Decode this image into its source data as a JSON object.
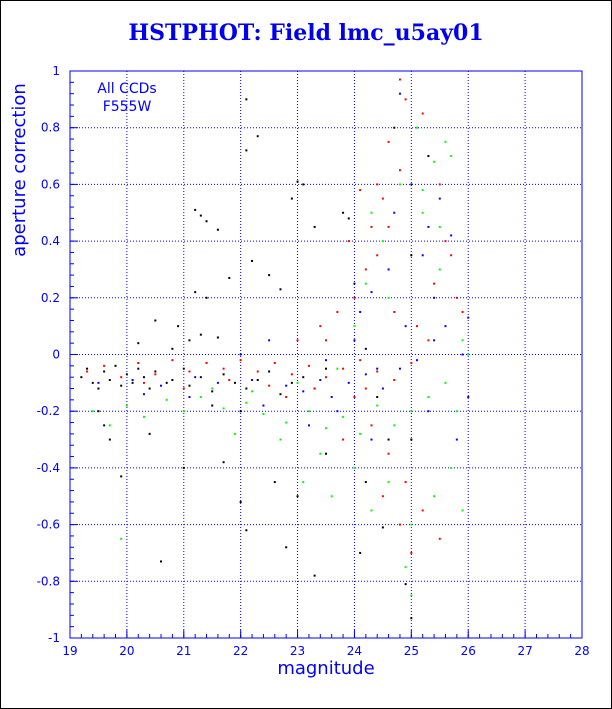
{
  "title": "HSTPHOT: Field lmc_u5ay01",
  "annotation": [
    "All CCDs",
    "F555W"
  ],
  "colors": {
    "axis": "#0000ff",
    "title": "#0000ee",
    "grid": "#0000ff"
  },
  "chart_data": {
    "type": "scatter",
    "title": "HSTPHOT: Field lmc_u5ay01",
    "xlabel": "magnitude",
    "ylabel": "aperture correction",
    "xlim": [
      19,
      28
    ],
    "ylim": [
      -1,
      1
    ],
    "xticks": [
      "19",
      "20",
      "21",
      "22",
      "23",
      "24",
      "25",
      "26",
      "27",
      "28"
    ],
    "yticks": [
      "-1",
      "-0.8",
      "-0.6",
      "-0.4",
      "-0.2",
      "0",
      "0.2",
      "0.4",
      "0.6",
      "0.8",
      "1"
    ],
    "grid": true,
    "series": [
      {
        "color": "#000000",
        "values": [
          [
            19.2,
            -0.08
          ],
          [
            19.3,
            -0.05
          ],
          [
            19.4,
            -0.1
          ],
          [
            19.5,
            -0.12
          ],
          [
            19.6,
            -0.06
          ],
          [
            19.7,
            -0.09
          ],
          [
            19.8,
            -0.04
          ],
          [
            19.9,
            -0.11
          ],
          [
            20.0,
            -0.07
          ],
          [
            20.1,
            -0.1
          ],
          [
            20.2,
            -0.05
          ],
          [
            20.3,
            -0.08
          ],
          [
            20.4,
            -0.12
          ],
          [
            20.5,
            -0.06
          ],
          [
            20.7,
            -0.1
          ],
          [
            20.8,
            -0.09
          ],
          [
            21.0,
            -0.05
          ],
          [
            21.1,
            -0.11
          ],
          [
            21.3,
            -0.08
          ],
          [
            21.5,
            -0.13
          ],
          [
            21.7,
            -0.07
          ],
          [
            21.9,
            -0.1
          ],
          [
            22.1,
            -0.12
          ],
          [
            22.3,
            -0.09
          ],
          [
            22.5,
            -0.06
          ],
          [
            22.7,
            -0.14
          ],
          [
            22.9,
            -0.1
          ],
          [
            23.1,
            -0.08
          ],
          [
            23.3,
            -0.12
          ],
          [
            23.5,
            -0.05
          ],
          [
            20.5,
            0.12
          ],
          [
            20.9,
            0.1
          ],
          [
            21.1,
            0.05
          ],
          [
            20.2,
            0.04
          ],
          [
            21.3,
            0.07
          ],
          [
            20.8,
            0.02
          ],
          [
            21.6,
            0.06
          ],
          [
            21.2,
            0.51
          ],
          [
            21.3,
            0.49
          ],
          [
            21.4,
            0.47
          ],
          [
            21.6,
            0.44
          ],
          [
            22.2,
            0.33
          ],
          [
            22.5,
            0.28
          ],
          [
            22.7,
            0.23
          ],
          [
            21.2,
            0.22
          ],
          [
            21.4,
            0.2
          ],
          [
            21.8,
            0.27
          ],
          [
            23.0,
            0.61
          ],
          [
            23.1,
            0.6
          ],
          [
            22.1,
            0.9
          ],
          [
            22.1,
            0.72
          ],
          [
            22.3,
            0.77
          ],
          [
            22.9,
            0.55
          ],
          [
            23.3,
            0.45
          ],
          [
            22.6,
            -0.45
          ],
          [
            22.0,
            -0.52
          ],
          [
            23.0,
            -0.5
          ],
          [
            21.7,
            -0.38
          ],
          [
            20.4,
            -0.28
          ],
          [
            19.7,
            -0.3
          ],
          [
            19.9,
            -0.43
          ],
          [
            20.6,
            -0.73
          ],
          [
            19.5,
            -0.2
          ],
          [
            19.6,
            -0.25
          ],
          [
            21.0,
            -0.4
          ],
          [
            22.1,
            -0.62
          ],
          [
            22.8,
            -0.68
          ],
          [
            23.3,
            -0.78
          ],
          [
            24.1,
            -0.7
          ],
          [
            24.9,
            -0.81
          ],
          [
            25.0,
            -0.93
          ],
          [
            24.5,
            -0.61
          ],
          [
            23.5,
            -0.35
          ],
          [
            23.8,
            0.5
          ],
          [
            24.0,
            0.25
          ],
          [
            24.2,
            0.02
          ],
          [
            24.4,
            -0.15
          ],
          [
            24.6,
            -0.3
          ],
          [
            22.0,
            -0.2
          ],
          [
            21.5,
            -0.18
          ],
          [
            24.2,
            -0.45
          ],
          [
            25.0,
            -0.3
          ],
          [
            24.7,
            0.8
          ],
          [
            25.0,
            0.35
          ],
          [
            23.9,
            0.48
          ],
          [
            25.3,
            0.7
          ]
        ]
      },
      {
        "color": "#ff0000",
        "values": [
          [
            19.3,
            -0.06
          ],
          [
            19.6,
            -0.04
          ],
          [
            19.9,
            -0.08
          ],
          [
            20.2,
            -0.03
          ],
          [
            20.5,
            -0.07
          ],
          [
            20.8,
            -0.02
          ],
          [
            21.1,
            -0.06
          ],
          [
            21.4,
            -0.03
          ],
          [
            21.7,
            -0.05
          ],
          [
            22.0,
            -0.02
          ],
          [
            22.3,
            -0.06
          ],
          [
            22.6,
            -0.03
          ],
          [
            22.9,
            -0.07
          ],
          [
            23.2,
            -0.04
          ],
          [
            23.5,
            -0.08
          ],
          [
            23.8,
            -0.05
          ],
          [
            24.1,
            -0.02
          ],
          [
            24.4,
            -0.06
          ],
          [
            24.7,
            -0.09
          ],
          [
            25.0,
            -0.03
          ],
          [
            20.3,
            -0.1
          ],
          [
            21.0,
            -0.12
          ],
          [
            21.8,
            -0.09
          ],
          [
            22.5,
            -0.11
          ],
          [
            23.0,
            0.05
          ],
          [
            23.4,
            0.1
          ],
          [
            23.7,
            0.15
          ],
          [
            24.0,
            0.2
          ],
          [
            24.2,
            0.3
          ],
          [
            24.3,
            0.45
          ],
          [
            24.5,
            0.55
          ],
          [
            24.8,
            0.65
          ],
          [
            24.6,
            0.75
          ],
          [
            24.9,
            0.9
          ],
          [
            24.8,
            0.97
          ],
          [
            25.2,
            0.85
          ],
          [
            25.5,
            0.6
          ],
          [
            25.6,
            0.4
          ],
          [
            25.8,
            0.2
          ],
          [
            25.4,
            0.25
          ],
          [
            24.1,
            0.58
          ],
          [
            23.9,
            0.4
          ],
          [
            24.4,
            0.35
          ],
          [
            24.7,
            0.15
          ],
          [
            25.1,
            0.1
          ],
          [
            25.3,
            0.05
          ],
          [
            24.0,
            -0.15
          ],
          [
            24.3,
            -0.25
          ],
          [
            24.6,
            -0.35
          ],
          [
            24.9,
            -0.45
          ],
          [
            25.2,
            -0.55
          ],
          [
            25.5,
            -0.65
          ],
          [
            24.5,
            -0.5
          ],
          [
            23.8,
            -0.3
          ],
          [
            24.8,
            -0.6
          ],
          [
            25.0,
            -0.7
          ],
          [
            23.5,
            0.05
          ],
          [
            23.3,
            -0.12
          ],
          [
            22.8,
            -0.15
          ],
          [
            24.2,
            -0.12
          ],
          [
            25.7,
            0.35
          ],
          [
            25.9,
            0.15
          ],
          [
            24.4,
            0.6
          ],
          [
            24.6,
            0.45
          ]
        ]
      },
      {
        "color": "#0000ff",
        "values": [
          [
            19.5,
            -0.1
          ],
          [
            20.1,
            -0.09
          ],
          [
            20.6,
            -0.11
          ],
          [
            21.2,
            -0.08
          ],
          [
            21.6,
            -0.1
          ],
          [
            22.2,
            -0.09
          ],
          [
            22.8,
            -0.11
          ],
          [
            23.1,
            -0.13
          ],
          [
            23.4,
            -0.09
          ],
          [
            23.6,
            -0.15
          ],
          [
            23.9,
            -0.1
          ],
          [
            24.2,
            -0.07
          ],
          [
            24.5,
            -0.12
          ],
          [
            24.8,
            -0.05
          ],
          [
            25.1,
            -0.02
          ],
          [
            25.4,
            0.05
          ],
          [
            25.6,
            0.1
          ],
          [
            25.9,
            0.0
          ],
          [
            26.0,
            0.13
          ],
          [
            24.1,
            0.15
          ],
          [
            24.3,
            0.22
          ],
          [
            24.6,
            0.3
          ],
          [
            24.9,
            0.1
          ],
          [
            25.2,
            0.35
          ],
          [
            25.3,
            0.45
          ],
          [
            25.5,
            0.55
          ],
          [
            25.7,
            0.42
          ],
          [
            24.4,
            -0.05
          ],
          [
            24.0,
            0.05
          ],
          [
            23.7,
            -0.2
          ],
          [
            23.2,
            -0.25
          ],
          [
            22.4,
            -0.18
          ],
          [
            21.1,
            -0.15
          ],
          [
            20.3,
            -0.14
          ],
          [
            24.7,
            0.5
          ],
          [
            25.0,
            0.6
          ],
          [
            24.8,
            0.92
          ],
          [
            25.4,
            0.2
          ],
          [
            26.0,
            -0.15
          ],
          [
            25.8,
            -0.3
          ],
          [
            25.3,
            -0.2
          ],
          [
            24.3,
            -0.3
          ],
          [
            22.0,
            0.0
          ],
          [
            22.5,
            0.05
          ],
          [
            23.5,
            -0.02
          ]
        ]
      },
      {
        "color": "#00ff00",
        "values": [
          [
            19.4,
            -0.2
          ],
          [
            19.7,
            -0.25
          ],
          [
            20.0,
            -0.18
          ],
          [
            20.3,
            -0.22
          ],
          [
            20.7,
            -0.16
          ],
          [
            21.0,
            -0.2
          ],
          [
            21.3,
            -0.15
          ],
          [
            21.7,
            -0.19
          ],
          [
            22.1,
            -0.17
          ],
          [
            22.4,
            -0.21
          ],
          [
            22.8,
            -0.24
          ],
          [
            23.2,
            -0.2
          ],
          [
            23.5,
            -0.26
          ],
          [
            23.8,
            -0.22
          ],
          [
            24.1,
            -0.28
          ],
          [
            24.4,
            -0.18
          ],
          [
            24.7,
            -0.25
          ],
          [
            25.0,
            -0.2
          ],
          [
            25.3,
            -0.15
          ],
          [
            25.6,
            -0.1
          ],
          [
            25.9,
            0.05
          ],
          [
            25.5,
            0.3
          ],
          [
            25.2,
            0.5
          ],
          [
            25.4,
            0.68
          ],
          [
            25.6,
            0.75
          ],
          [
            25.7,
            0.7
          ],
          [
            25.1,
            0.8
          ],
          [
            24.8,
            0.6
          ],
          [
            24.5,
            0.4
          ],
          [
            24.2,
            0.25
          ],
          [
            24.0,
            0.1
          ],
          [
            23.7,
            -0.05
          ],
          [
            23.4,
            -0.35
          ],
          [
            23.1,
            -0.45
          ],
          [
            23.6,
            -0.5
          ],
          [
            24.0,
            -0.4
          ],
          [
            24.3,
            -0.55
          ],
          [
            24.6,
            -0.45
          ],
          [
            25.0,
            -0.6
          ],
          [
            25.4,
            -0.5
          ],
          [
            25.7,
            -0.4
          ],
          [
            25.9,
            -0.55
          ],
          [
            24.9,
            -0.75
          ],
          [
            25.0,
            -0.85
          ],
          [
            19.9,
            -0.65
          ],
          [
            22.7,
            -0.3
          ],
          [
            21.9,
            -0.28
          ],
          [
            26.0,
            0.0
          ],
          [
            25.8,
            -0.2
          ],
          [
            24.3,
            0.5
          ],
          [
            24.6,
            0.2
          ],
          [
            25.2,
            0.58
          ],
          [
            25.5,
            0.45
          ],
          [
            23.0,
            -0.1
          ],
          [
            22.2,
            -0.13
          ],
          [
            21.5,
            -0.12
          ]
        ]
      }
    ]
  }
}
